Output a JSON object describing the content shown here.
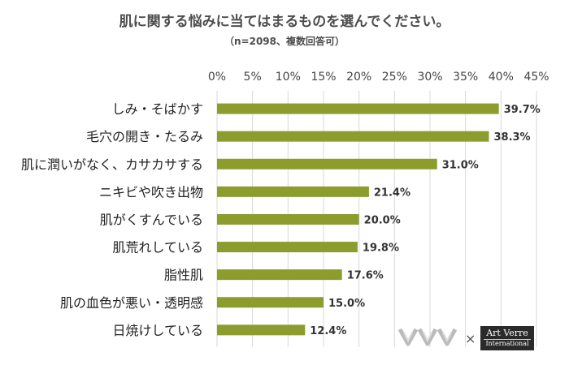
{
  "chart_data": {
    "type": "bar",
    "orientation": "horizontal",
    "title": "肌に関する悩みに当てはまるものを選んでください。",
    "subtitle": "（n=2098、複数回答可）",
    "categories": [
      "しみ・そばかす",
      "毛穴の開き・たるみ",
      "肌に潤いがなく、カサカサする",
      "ニキビや吹き出物",
      "肌がくすんでいる",
      "肌荒れしている",
      "脂性肌",
      "肌の血色が悪い・透明感",
      "日焼けしている"
    ],
    "values": [
      39.7,
      38.3,
      31.0,
      21.4,
      20.0,
      19.8,
      17.6,
      15.0,
      12.4
    ],
    "value_labels": [
      "39.7%",
      "38.3%",
      "31.0%",
      "21.4%",
      "20.0%",
      "19.8%",
      "17.6%",
      "15.0%",
      "12.4%"
    ],
    "xlim": [
      0,
      45
    ],
    "x_ticks": [
      "0%",
      "5%",
      "10%",
      "15%",
      "20%",
      "25%",
      "30%",
      "35%",
      "40%",
      "45%"
    ],
    "x_tick_values": [
      0,
      5,
      10,
      15,
      20,
      25,
      30,
      35,
      40,
      45
    ],
    "grid": "vertical",
    "bar_color": "#8c9d2e",
    "grid_color": "#d9d9d9"
  },
  "logos": {
    "watermark_name": "vent-vert-logo",
    "separator": "×",
    "brand_main": "Art Verre",
    "brand_sub": "International"
  }
}
